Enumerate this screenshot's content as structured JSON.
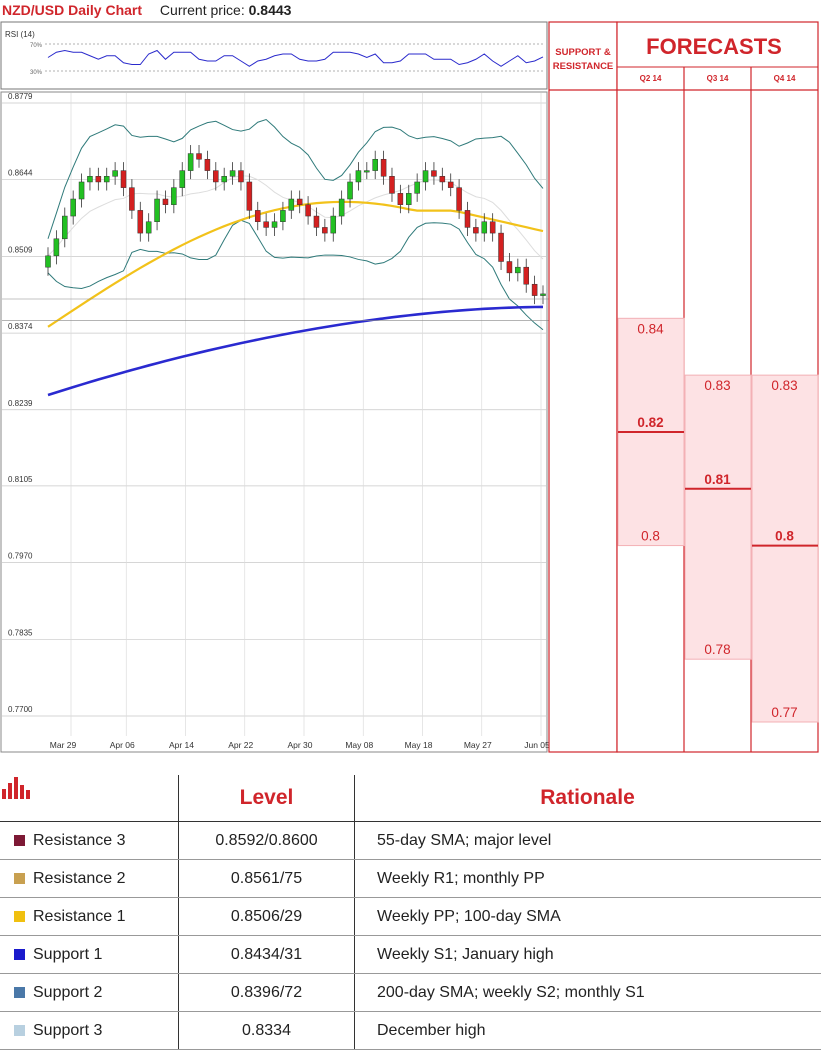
{
  "header": {
    "title": "NZD/USD Daily Chart",
    "current_label": "Current price:",
    "current_value": "0.8443"
  },
  "rsi": {
    "label": "RSI (14)",
    "upper": "70%",
    "lower": "30%"
  },
  "colors": {
    "red": "#d0252b",
    "candle_up": "#22c022",
    "candle_down": "#d42020",
    "sma55": "#f2c21a",
    "sma200": "#2a2ad0",
    "bollinger": "#2f7a7a",
    "forecast_fill": "#fde2e4"
  },
  "chart_data": {
    "type": "line",
    "ylim": [
      0.77,
      0.8779
    ],
    "y_ticks": [
      "0.8779",
      "0.8644",
      "0.8509",
      "0.8374",
      "0.8239",
      "0.8105",
      "0.7970",
      "0.7835",
      "0.7700"
    ],
    "x_ticks": [
      "Mar 29",
      "Apr 06",
      "Apr 14",
      "Apr 22",
      "Apr 30",
      "May 08",
      "May 18",
      "May 27",
      "Jun 05"
    ],
    "close_series": [
      0.851,
      0.854,
      0.858,
      0.861,
      0.864,
      0.865,
      0.864,
      0.865,
      0.866,
      0.863,
      0.859,
      0.855,
      0.857,
      0.861,
      0.86,
      0.863,
      0.866,
      0.869,
      0.868,
      0.866,
      0.864,
      0.865,
      0.866,
      0.864,
      0.859,
      0.857,
      0.856,
      0.857,
      0.859,
      0.861,
      0.86,
      0.858,
      0.856,
      0.855,
      0.858,
      0.861,
      0.864,
      0.866,
      0.866,
      0.868,
      0.865,
      0.862,
      0.86,
      0.862,
      0.864,
      0.866,
      0.865,
      0.864,
      0.863,
      0.859,
      0.856,
      0.855,
      0.857,
      0.855,
      0.85,
      0.848,
      0.849,
      0.846,
      0.844,
      0.8443
    ],
    "series_names": [
      "55-day SMA",
      "200-day SMA",
      "Bollinger bands"
    ],
    "levels": [
      {
        "name": "Resistance 3",
        "value": "0.8592",
        "color": "#7d1935"
      },
      {
        "name": "Resistance 2",
        "value": "0.8561",
        "color": "#c8a050"
      },
      {
        "name": "Resistance 1",
        "value": "0.8506",
        "color": "#f0c010"
      },
      {
        "name": "Support 1",
        "value": "0.8434",
        "color": "#1a1acc"
      },
      {
        "name": "Support 2",
        "value": "0.8396",
        "color": "#4a78a8"
      },
      {
        "name": "Support 3",
        "value": "0.8334",
        "color": "#b8d0e0"
      }
    ],
    "forecasts": [
      {
        "quarter": "Q2 14",
        "high": "0.84",
        "mid": "0.82",
        "low": "0.8",
        "high_v": 0.84,
        "mid_v": 0.82,
        "low_v": 0.8
      },
      {
        "quarter": "Q3 14",
        "high": "0.83",
        "mid": "0.81",
        "low": "0.78",
        "high_v": 0.83,
        "mid_v": 0.81,
        "low_v": 0.78
      },
      {
        "quarter": "Q4 14",
        "high": "0.83",
        "mid": "0.8",
        "low": "0.77",
        "high_v": 0.83,
        "mid_v": 0.8,
        "low_v": 0.77
      }
    ]
  },
  "panel": {
    "sr_title_1": "SUPPORT &",
    "sr_title_2": "RESISTANCE",
    "fc_title": "FORECASTS"
  },
  "table": {
    "headers": {
      "icon": "bar-chart-icon",
      "level": "Level",
      "rationale": "Rationale"
    },
    "rows": [
      {
        "name": "Resistance 3",
        "level": "0.8592/0.8600",
        "rationale": "55-day SMA; major level",
        "color": "#7d1935"
      },
      {
        "name": "Resistance 2",
        "level": "0.8561/75",
        "rationale": "Weekly R1; monthly PP",
        "color": "#c8a050"
      },
      {
        "name": "Resistance 1",
        "level": "0.8506/29",
        "rationale": "Weekly PP; 100-day SMA",
        "color": "#f0c010"
      },
      {
        "name": "Support 1",
        "level": "0.8434/31",
        "rationale": "Weekly S1; January high",
        "color": "#1a1acc"
      },
      {
        "name": "Support 2",
        "level": "0.8396/72",
        "rationale": "200-day SMA; weekly S2; monthly S1",
        "color": "#4a78a8"
      },
      {
        "name": "Support 3",
        "level": "0.8334",
        "rationale": "December high",
        "color": "#b8d0e0"
      }
    ]
  }
}
